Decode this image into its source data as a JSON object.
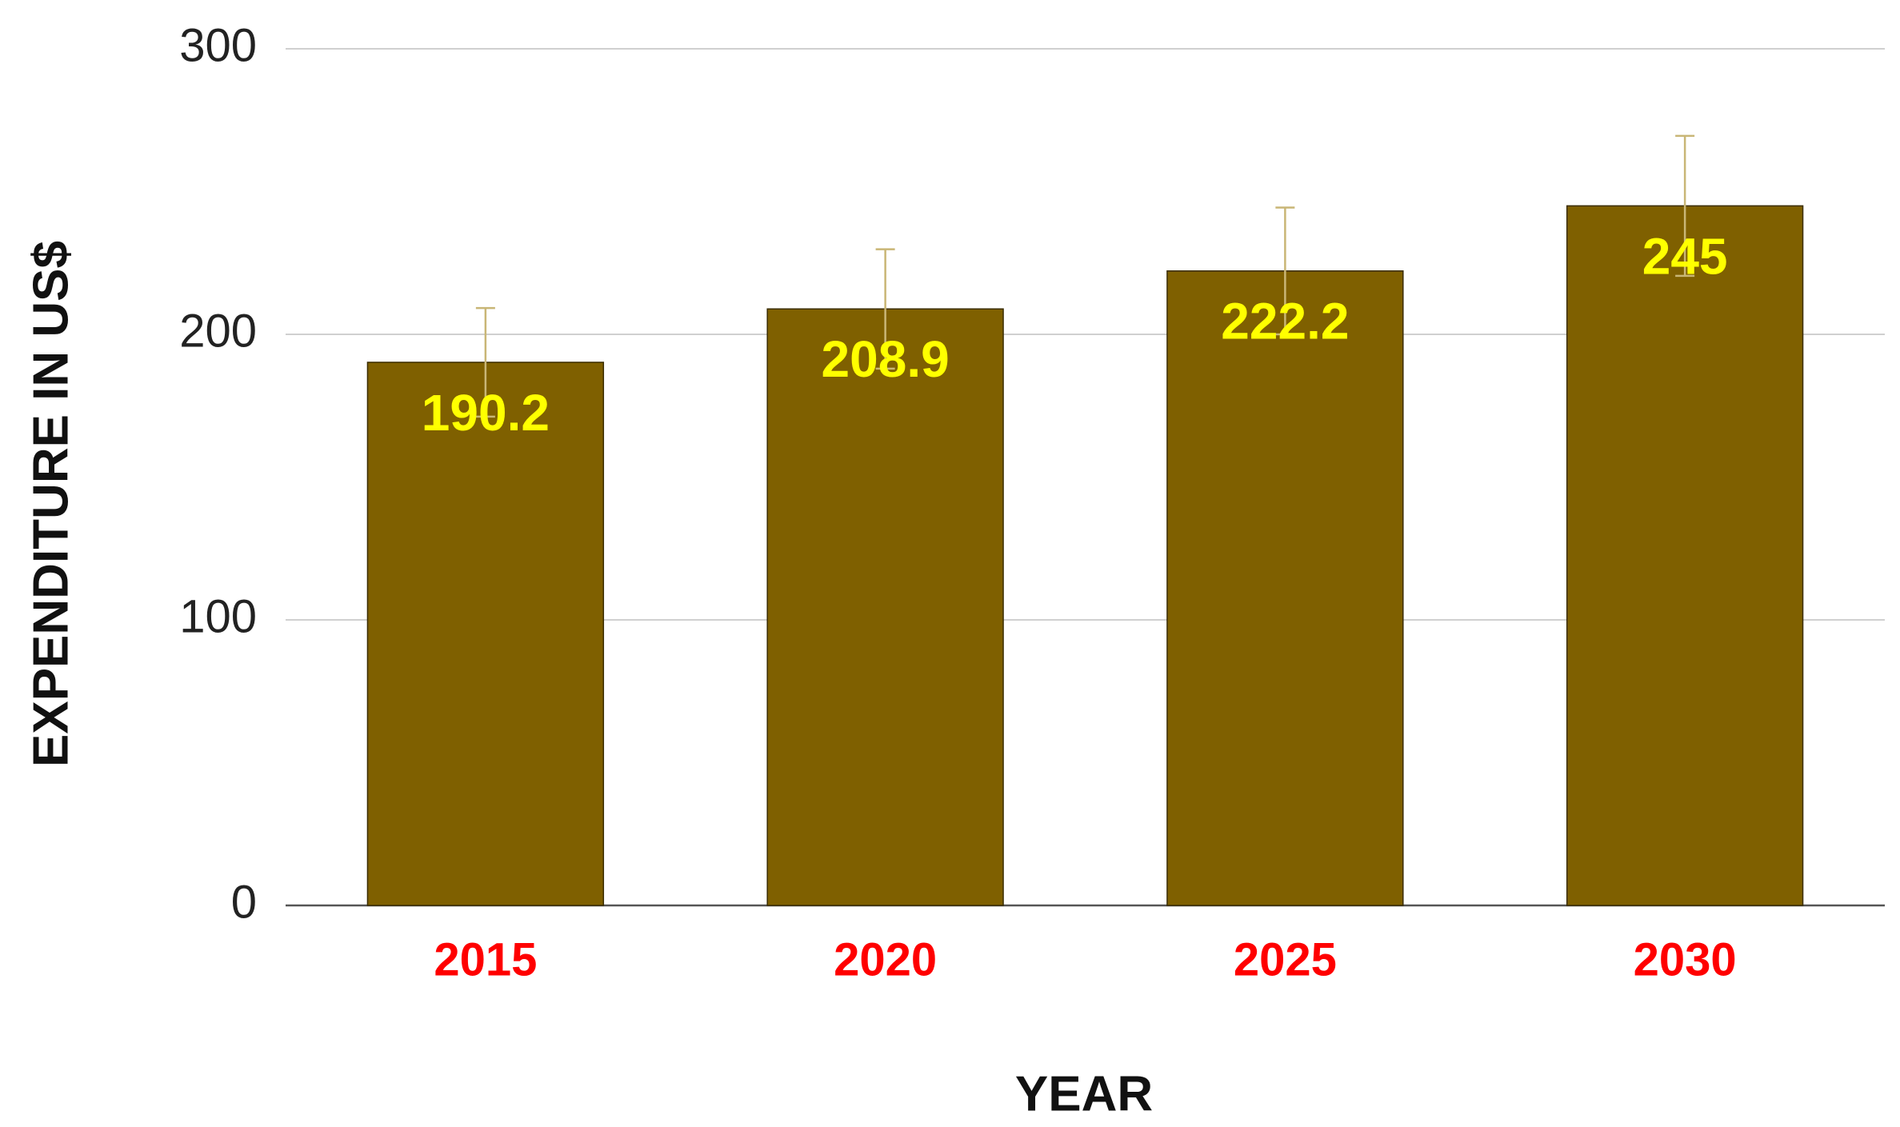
{
  "chart_data": {
    "type": "bar",
    "x_label": "YEAR",
    "y_label": "EXPENDITURE IN  US$",
    "categories": [
      "2015",
      "2020",
      "2025",
      "2030"
    ],
    "values": [
      190.2,
      208.9,
      222.2,
      245
    ],
    "errors": [
      19.0,
      20.9,
      22.2,
      24.5
    ],
    "color": "#7f6000",
    "error_color": "#c9b676",
    "value_label_color": "#ffff00",
    "category_label_color": "#ff0000",
    "ylim": [
      0,
      300
    ],
    "yticks": [
      0,
      100,
      200,
      300
    ],
    "grid": true
  }
}
